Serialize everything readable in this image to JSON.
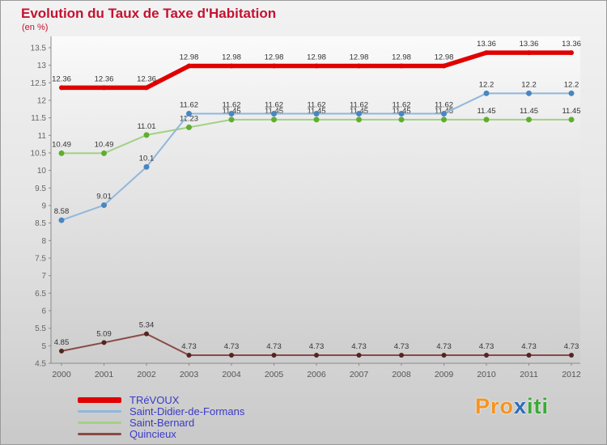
{
  "header": {
    "title": "Evolution du Taux de Taxe d'Habitation",
    "subtitle": "(en %)",
    "title_color": "#c41230"
  },
  "chart_data": {
    "type": "line",
    "x": [
      2000,
      2001,
      2002,
      2003,
      2004,
      2005,
      2006,
      2007,
      2008,
      2009,
      2010,
      2011,
      2012
    ],
    "series": [
      {
        "name": "TRéVOUX",
        "color": "#e10000",
        "point_color": "#e10000",
        "width": 5.5,
        "point_radius": 3,
        "values": [
          12.36,
          12.36,
          12.36,
          12.98,
          12.98,
          12.98,
          12.98,
          12.98,
          12.98,
          12.98,
          13.36,
          13.36,
          13.36
        ]
      },
      {
        "name": "Saint-Didier-de-Formans",
        "color": "#8fb7dc",
        "point_color": "#4a86c0",
        "width": 2,
        "point_radius": 3.5,
        "values": [
          8.58,
          9.01,
          10.1,
          11.62,
          11.62,
          11.62,
          11.62,
          11.62,
          11.62,
          11.62,
          12.2,
          12.2,
          12.2
        ]
      },
      {
        "name": "Saint-Bernard",
        "color": "#a2d184",
        "point_color": "#5fae2e",
        "width": 2,
        "point_radius": 3.5,
        "values": [
          10.49,
          10.49,
          11.01,
          11.23,
          11.45,
          11.45,
          11.45,
          11.45,
          11.45,
          11.45,
          11.45,
          11.45,
          11.45
        ]
      },
      {
        "name": "Quincieux",
        "color": "#8a4a45",
        "point_color": "#552420",
        "width": 2,
        "point_radius": 3,
        "values": [
          4.85,
          5.09,
          5.34,
          4.73,
          4.73,
          4.73,
          4.73,
          4.73,
          4.73,
          4.73,
          4.73,
          4.73,
          4.73
        ]
      }
    ],
    "ylim": [
      4.5,
      13.5
    ],
    "yticks": [
      4.5,
      5,
      5.5,
      6,
      6.5,
      7,
      7.5,
      8,
      8.5,
      9,
      9.5,
      10,
      10.5,
      11,
      11.5,
      12,
      12.5,
      13,
      13.5
    ],
    "grid": false,
    "value_labels": true,
    "legend_position": "bottom-left",
    "xlabel": "",
    "ylabel": ""
  },
  "logo": {
    "pro": "Pro",
    "x": "x",
    "iti": "iti",
    "pro_color": "#f7941d",
    "x_color": "#2b6cb8",
    "iti_color": "#3aaa35"
  }
}
